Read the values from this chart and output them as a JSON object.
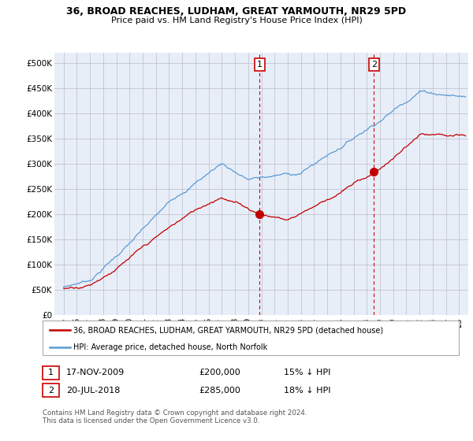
{
  "title": "36, BROAD REACHES, LUDHAM, GREAT YARMOUTH, NR29 5PD",
  "subtitle": "Price paid vs. HM Land Registry's House Price Index (HPI)",
  "legend_line1": "36, BROAD REACHES, LUDHAM, GREAT YARMOUTH, NR29 5PD (detached house)",
  "legend_line2": "HPI: Average price, detached house, North Norfolk",
  "annotation1": {
    "label": "1",
    "date": "17-NOV-2009",
    "price": "£200,000",
    "pct": "15% ↓ HPI",
    "x_year": 2009.88,
    "y": 200000
  },
  "annotation2": {
    "label": "2",
    "date": "20-JUL-2018",
    "price": "£285,000",
    "pct": "18% ↓ HPI",
    "x_year": 2018.55,
    "y": 285000
  },
  "footer": "Contains HM Land Registry data © Crown copyright and database right 2024.\nThis data is licensed under the Open Government Licence v3.0.",
  "hpi_color": "#5b9bd5",
  "price_color": "#c00000",
  "background_color": "#e8eef8",
  "ylim": [
    0,
    520000
  ],
  "yticks": [
    0,
    50000,
    100000,
    150000,
    200000,
    250000,
    300000,
    350000,
    400000,
    450000,
    500000
  ],
  "ytick_labels": [
    "£0",
    "£50K",
    "£100K",
    "£150K",
    "£200K",
    "£250K",
    "£300K",
    "£350K",
    "£400K",
    "£450K",
    "£500K"
  ],
  "xlim": [
    1994.3,
    2025.7
  ]
}
